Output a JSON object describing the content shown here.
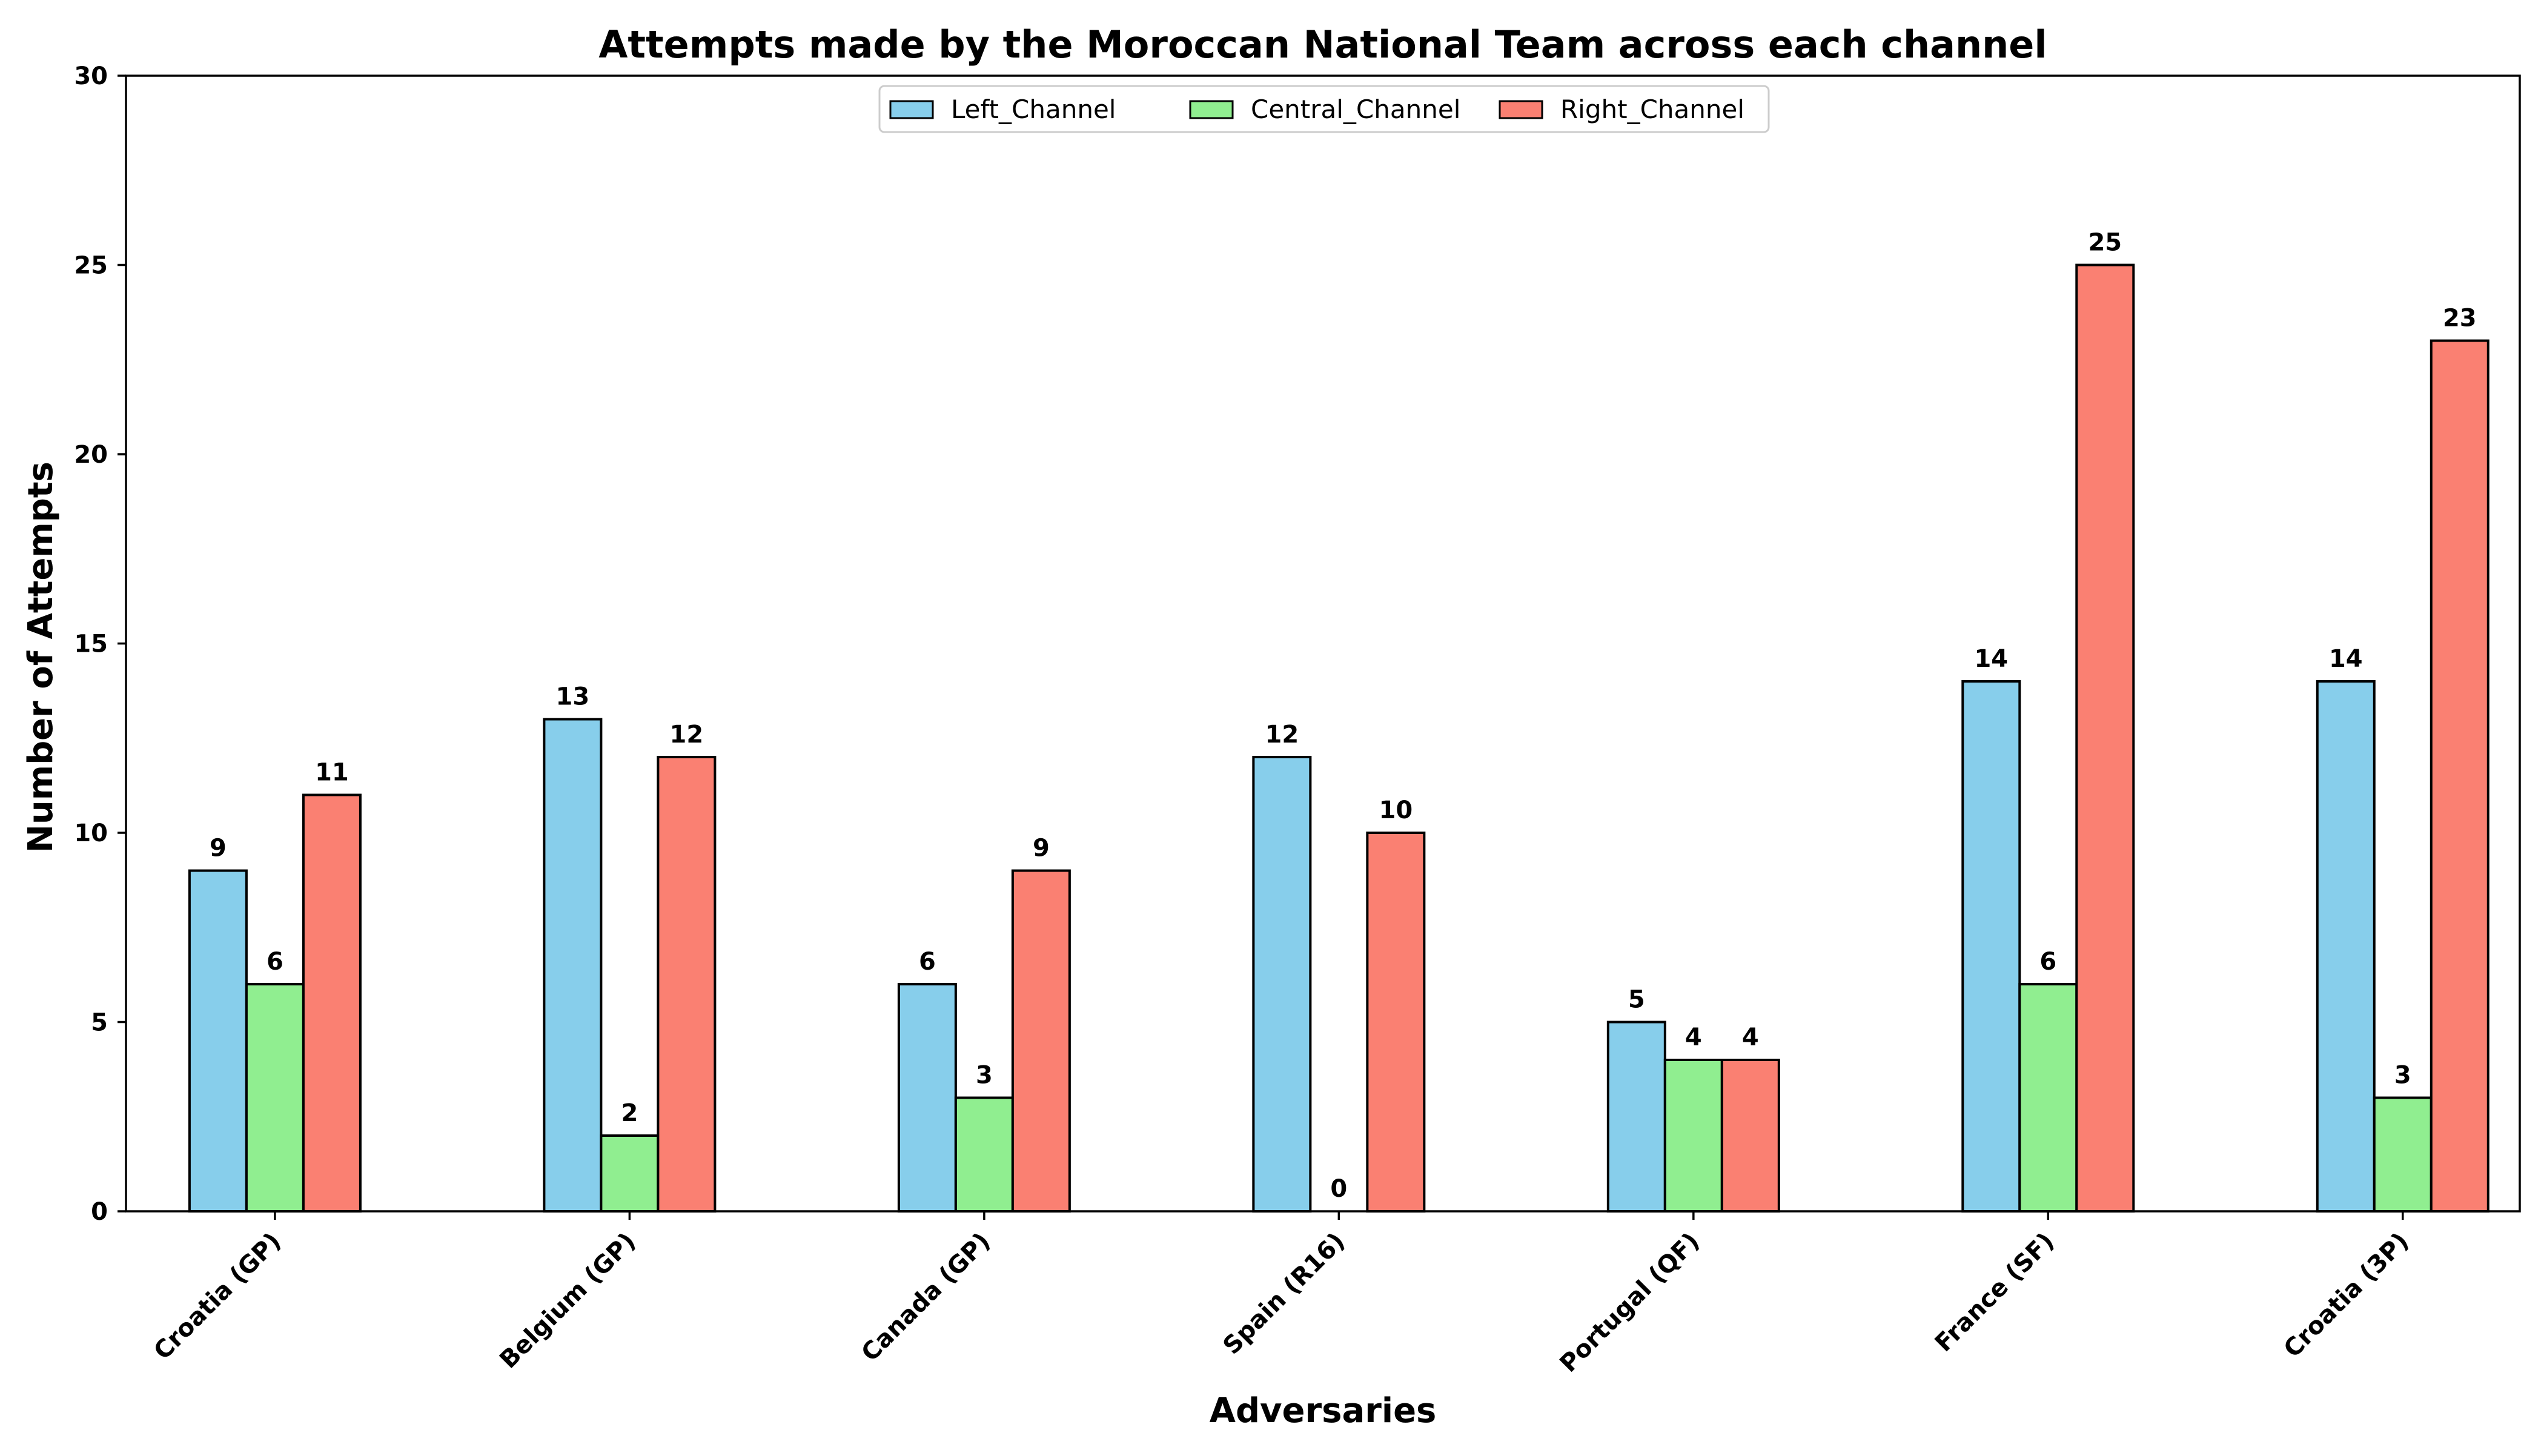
{
  "chart_data": {
    "type": "bar",
    "title": "Attempts made by the Moroccan National Team across each channel",
    "xlabel": "Adversaries",
    "ylabel": "Number of Attempts",
    "categories": [
      "Croatia (GP)",
      "Belgium (GP)",
      "Canada (GP)",
      "Spain (R16)",
      "Portugal (QF)",
      "France (SF)",
      "Croatia (3P)"
    ],
    "series": [
      {
        "name": "Left_Channel",
        "color": "#87ceeb",
        "values": [
          9,
          13,
          6,
          12,
          5,
          14,
          14
        ]
      },
      {
        "name": "Central_Channel",
        "color": "#90ee90",
        "values": [
          6,
          2,
          3,
          0,
          4,
          6,
          3
        ]
      },
      {
        "name": "Right_Channel",
        "color": "#fa8072",
        "values": [
          11,
          12,
          9,
          10,
          4,
          25,
          23
        ]
      }
    ],
    "ylim": [
      0,
      30
    ],
    "yticks": [
      0,
      5,
      10,
      15,
      20,
      25,
      30
    ],
    "grid": false,
    "legend_position": "top-center"
  }
}
